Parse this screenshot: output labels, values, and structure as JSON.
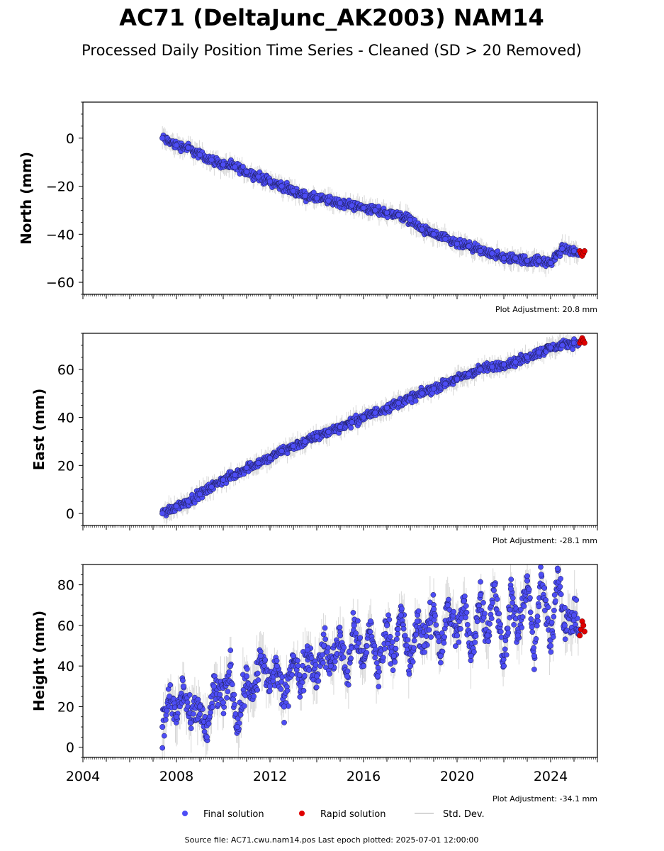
{
  "figure": {
    "title": "AC71 (DeltaJunc_AK2003) NAM14",
    "subtitle": "Processed Daily Position Time Series - Cleaned (SD > 20 Removed)",
    "footer": "Source file: AC71.cwu.nam14.pos  Last epoch plotted: 2025-07-01 12:00:00"
  },
  "legend": {
    "final": "Final solution",
    "rapid": "Rapid solution",
    "std": "Std. Dev."
  },
  "colors": {
    "final": "#4d4df5",
    "rapid": "#e00000",
    "std": "#b8b8b8"
  },
  "chart_data": [
    {
      "type": "scatter",
      "ylabel": "North (mm)",
      "xlim": [
        2004.0,
        2026.0
      ],
      "ylim": [
        -65,
        15
      ],
      "yticks": [
        -60,
        -40,
        -20,
        0
      ],
      "note": "Plot Adjustment: 20.8 mm",
      "series": [
        {
          "name": "Final solution",
          "x": [
            2007.4,
            2008.0,
            2008.5,
            2009.0,
            2009.5,
            2010.0,
            2010.5,
            2011.0,
            2011.5,
            2012.0,
            2012.5,
            2013.0,
            2013.5,
            2014.0,
            2014.5,
            2015.0,
            2015.5,
            2016.0,
            2016.5,
            2017.0,
            2017.5,
            2018.0,
            2018.5,
            2019.0,
            2019.5,
            2020.0,
            2020.5,
            2021.0,
            2021.5,
            2022.0,
            2022.5,
            2023.0,
            2023.5,
            2024.0,
            2024.5,
            2025.0,
            2025.2
          ],
          "y": [
            0,
            -3,
            -4,
            -7,
            -9,
            -11,
            -12,
            -14,
            -16,
            -18,
            -20,
            -22,
            -24,
            -25,
            -26,
            -27,
            -28,
            -29,
            -30,
            -31,
            -32,
            -34,
            -38,
            -40,
            -42,
            -44,
            -45,
            -47,
            -48,
            -50,
            -50,
            -51,
            -51,
            -52,
            -46,
            -47,
            -48
          ]
        },
        {
          "name": "Rapid solution",
          "x": [
            2025.25,
            2025.3,
            2025.35,
            2025.4,
            2025.45
          ],
          "y": [
            -47,
            -48,
            -49,
            -48,
            -47
          ]
        }
      ]
    },
    {
      "type": "scatter",
      "ylabel": "East (mm)",
      "xlim": [
        2004.0,
        2026.0
      ],
      "ylim": [
        -5,
        75
      ],
      "yticks": [
        0,
        20,
        40,
        60
      ],
      "note": "Plot Adjustment: -28.1 mm",
      "series": [
        {
          "name": "Final solution",
          "x": [
            2007.4,
            2008.0,
            2008.5,
            2009.0,
            2009.5,
            2010.0,
            2010.5,
            2011.0,
            2011.5,
            2012.0,
            2012.5,
            2013.0,
            2013.5,
            2014.0,
            2014.5,
            2015.0,
            2015.5,
            2016.0,
            2016.5,
            2017.0,
            2017.5,
            2018.0,
            2018.5,
            2019.0,
            2019.5,
            2020.0,
            2020.5,
            2021.0,
            2021.5,
            2022.0,
            2022.5,
            2023.0,
            2023.5,
            2024.0,
            2024.5,
            2025.0,
            2025.2
          ],
          "y": [
            0,
            3,
            5,
            8,
            11,
            14,
            16,
            19,
            21,
            23,
            26,
            28,
            30,
            32,
            34,
            36,
            38,
            40,
            42,
            44,
            46,
            48,
            50,
            52,
            54,
            56,
            58,
            60,
            61,
            62,
            63,
            65,
            67,
            69,
            70,
            71,
            71
          ]
        },
        {
          "name": "Rapid solution",
          "x": [
            2025.25,
            2025.3,
            2025.35,
            2025.4,
            2025.45
          ],
          "y": [
            71,
            72,
            73,
            72,
            71
          ]
        }
      ]
    },
    {
      "type": "scatter",
      "ylabel": "Height (mm)",
      "xlim": [
        2004.0,
        2026.0
      ],
      "ylim": [
        -5,
        90
      ],
      "yticks": [
        0,
        20,
        40,
        60,
        80
      ],
      "xticks": [
        "2004",
        "2008",
        "2012",
        "2016",
        "2020",
        "2024"
      ],
      "note": "Plot Adjustment: -34.1 mm",
      "series": [
        {
          "name": "Final solution",
          "x": [
            2007.4,
            2007.7,
            2008.0,
            2008.3,
            2008.6,
            2009.0,
            2009.3,
            2009.6,
            2010.0,
            2010.3,
            2010.6,
            2011.0,
            2011.3,
            2011.6,
            2012.0,
            2012.3,
            2012.6,
            2013.0,
            2013.3,
            2013.6,
            2014.0,
            2014.3,
            2014.6,
            2015.0,
            2015.3,
            2015.6,
            2016.0,
            2016.3,
            2016.6,
            2017.0,
            2017.3,
            2017.6,
            2018.0,
            2018.3,
            2018.6,
            2019.0,
            2019.3,
            2019.6,
            2020.0,
            2020.3,
            2020.6,
            2021.0,
            2021.3,
            2021.6,
            2022.0,
            2022.3,
            2022.6,
            2023.0,
            2023.3,
            2023.6,
            2024.0,
            2024.3,
            2024.6,
            2025.0,
            2025.2
          ],
          "y": [
            10,
            25,
            15,
            30,
            12,
            20,
            5,
            30,
            22,
            40,
            10,
            35,
            25,
            45,
            30,
            40,
            20,
            45,
            30,
            48,
            35,
            50,
            40,
            55,
            35,
            60,
            40,
            62,
            35,
            60,
            45,
            65,
            40,
            62,
            50,
            68,
            45,
            70,
            55,
            72,
            45,
            75,
            55,
            80,
            40,
            78,
            55,
            82,
            45,
            85,
            50,
            88,
            60,
            65,
            58
          ]
        },
        {
          "name": "Rapid solution",
          "x": [
            2025.25,
            2025.3,
            2025.35,
            2025.4,
            2025.45
          ],
          "y": [
            55,
            58,
            62,
            60,
            57
          ]
        }
      ]
    }
  ]
}
